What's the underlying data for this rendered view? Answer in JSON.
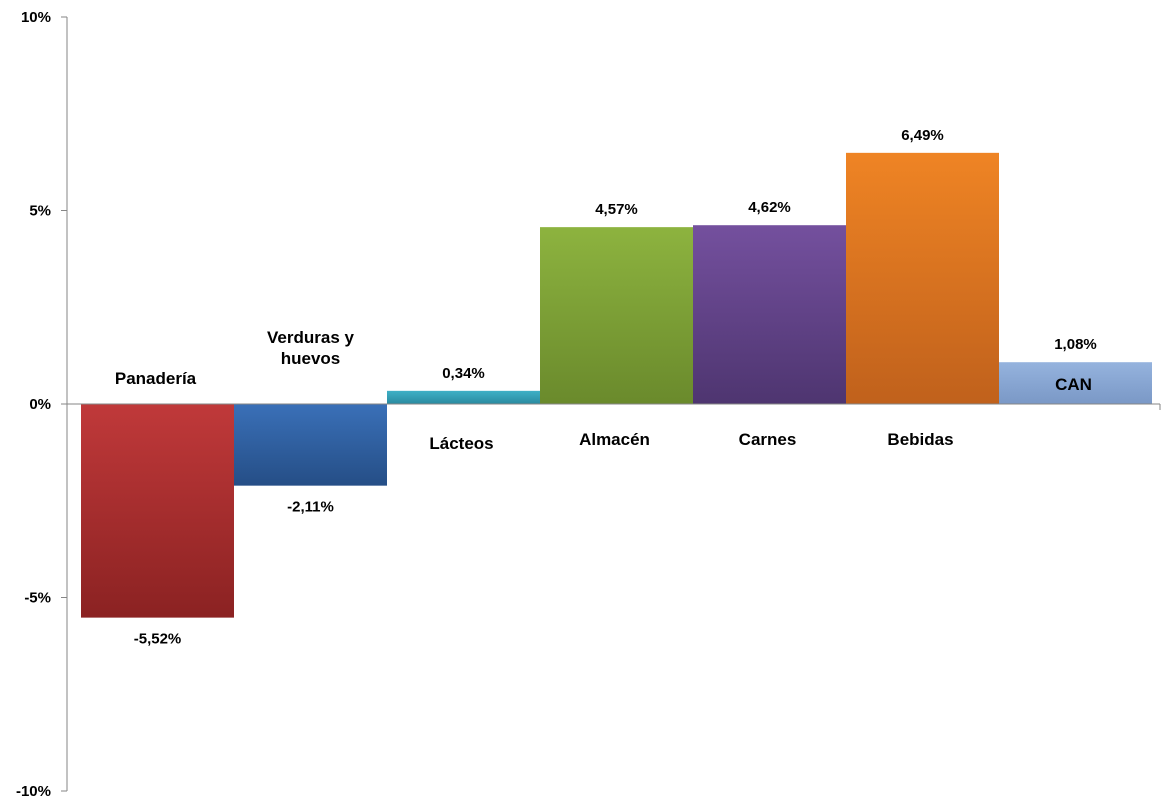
{
  "chart_data": {
    "type": "bar",
    "title": "",
    "xlabel": "",
    "ylabel": "",
    "ylim": [
      -10,
      10
    ],
    "yticks": [
      {
        "value": 10,
        "label": "10%"
      },
      {
        "value": 5,
        "label": "5%"
      },
      {
        "value": 0,
        "label": "0%"
      },
      {
        "value": -5,
        "label": "-5%"
      },
      {
        "value": -10,
        "label": "-10%"
      }
    ],
    "grid": false,
    "legend": "none",
    "categories": [
      "Panadería",
      "Verduras y huevos",
      "Lácteos",
      "Almacén",
      "Carnes",
      "Bebidas",
      "CAN"
    ],
    "category_label_lines": [
      [
        "Panadería"
      ],
      [
        "Verduras y",
        "huevos"
      ],
      [
        "Lácteos"
      ],
      [
        "Almacén"
      ],
      [
        "Carnes"
      ],
      [
        "Bebidas"
      ],
      [
        "CAN"
      ]
    ],
    "values": [
      -5.52,
      -2.11,
      0.34,
      4.57,
      4.62,
      6.49,
      1.08
    ],
    "data_labels": [
      "-5,52%",
      "-2,11%",
      "0,34%",
      "4,57%",
      "4,62%",
      "6,49%",
      "1,08%"
    ],
    "colors": [
      {
        "top": "#c0393a",
        "bottom": "#8b2222"
      },
      {
        "top": "#3a70b8",
        "bottom": "#254e86"
      },
      {
        "top": "#3fb0c6",
        "bottom": "#2a8aa0"
      },
      {
        "top": "#8db33f",
        "bottom": "#6a8a2c"
      },
      {
        "top": "#74509e",
        "bottom": "#4e3570"
      },
      {
        "top": "#ef8424",
        "bottom": "#c0611c"
      },
      {
        "top": "#95b3de",
        "bottom": "#7a98c6"
      }
    ]
  }
}
